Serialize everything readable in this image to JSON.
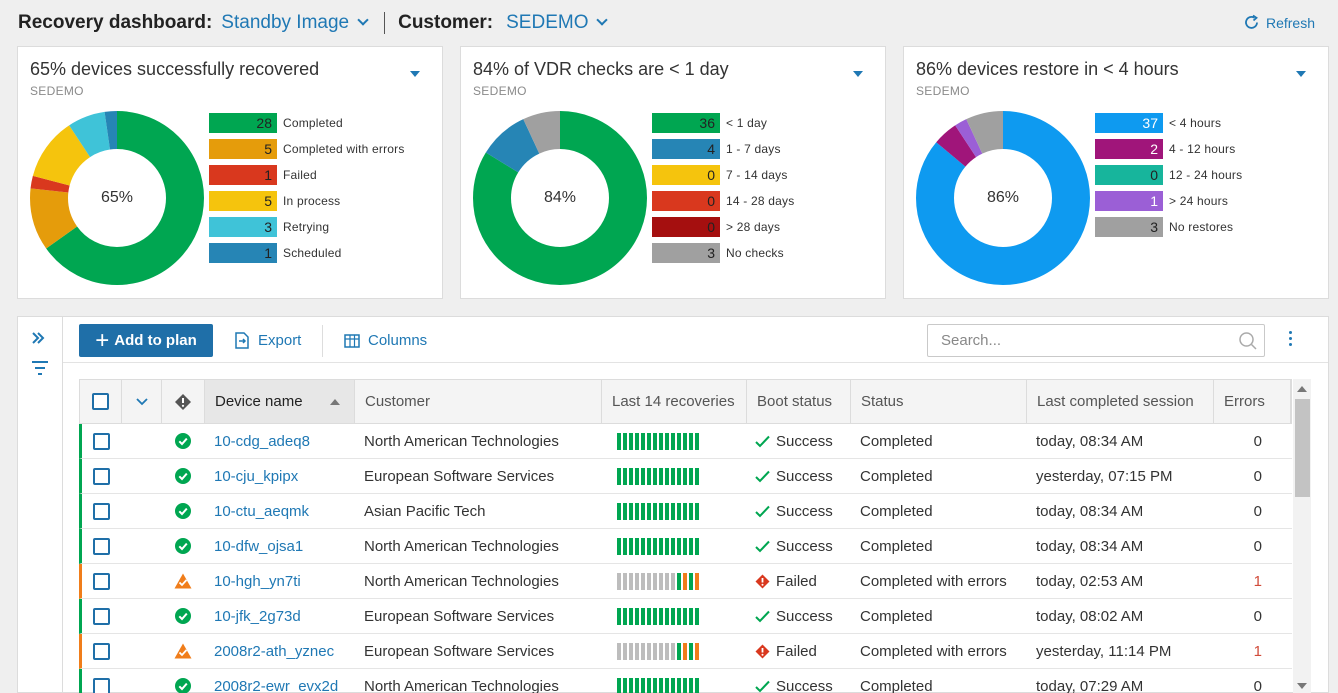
{
  "header": {
    "dashboard_label": "Recovery dashboard:",
    "dashboard_value": "Standby Image",
    "customer_label": "Customer:",
    "customer_value": "SEDEMO",
    "refresh_label": "Refresh"
  },
  "cards": [
    {
      "title": "65% devices successfully recovered",
      "subtitle": "SEDEMO",
      "center": "65%",
      "legend": [
        {
          "value": 28,
          "label": "Completed",
          "color": "#00a651"
        },
        {
          "value": 5,
          "label": "Completed with errors",
          "color": "#e59c0b"
        },
        {
          "value": 1,
          "label": "Failed",
          "color": "#d9381e"
        },
        {
          "value": 5,
          "label": "In process",
          "color": "#f5c40d"
        },
        {
          "value": 3,
          "label": "Retrying",
          "color": "#3fc3d8"
        },
        {
          "value": 1,
          "label": "Scheduled",
          "color": "#2685b5"
        }
      ]
    },
    {
      "title": "84% of VDR checks are < 1 day",
      "subtitle": "SEDEMO",
      "center": "84%",
      "legend": [
        {
          "value": 36,
          "label": "< 1 day",
          "color": "#00a651"
        },
        {
          "value": 4,
          "label": "1 - 7 days",
          "color": "#2685b5"
        },
        {
          "value": 0,
          "label": "7 - 14 days",
          "color": "#f5c40d"
        },
        {
          "value": 0,
          "label": "14 - 28 days",
          "color": "#d9381e"
        },
        {
          "value": 0,
          "label": "> 28 days",
          "color": "#a50f0f"
        },
        {
          "value": 3,
          "label": "No checks",
          "color": "#a0a0a0"
        }
      ]
    },
    {
      "title": "86% devices restore in < 4 hours",
      "subtitle": "SEDEMO",
      "center": "86%",
      "legend": [
        {
          "value": 37,
          "label": "< 4 hours",
          "color": "#0e9af0",
          "text_color": "#ffffff"
        },
        {
          "value": 2,
          "label": "4 - 12 hours",
          "color": "#a0157a",
          "text_color": "#ffffff"
        },
        {
          "value": 0,
          "label": "12 - 24 hours",
          "color": "#17b59c",
          "text_color": "#222222"
        },
        {
          "value": 1,
          "label": "> 24 hours",
          "color": "#9b5fd6",
          "text_color": "#ffffff"
        },
        {
          "value": 3,
          "label": "No restores",
          "color": "#a0a0a0",
          "text_color": "#222222"
        }
      ]
    }
  ],
  "toolbar": {
    "add_label": "Add to plan",
    "export_label": "Export",
    "columns_label": "Columns",
    "search_placeholder": "Search..."
  },
  "table": {
    "headers": {
      "device": "Device name",
      "customer": "Customer",
      "recoveries": "Last 14 recoveries",
      "boot": "Boot status",
      "status": "Status",
      "session": "Last completed session",
      "errors": "Errors"
    },
    "rows": [
      {
        "device": "10-cdg_adeq8",
        "customer": "North American Technologies",
        "boot": "Success",
        "status": "Completed",
        "session": "today, 08:34 AM",
        "errors": "0",
        "state": "ok",
        "recoveries": [
          "g",
          "g",
          "g",
          "g",
          "g",
          "g",
          "g",
          "g",
          "g",
          "g",
          "g",
          "g",
          "g",
          "g"
        ]
      },
      {
        "device": "10-cju_kpipx",
        "customer": "European Software Services",
        "boot": "Success",
        "status": "Completed",
        "session": "yesterday, 07:15 PM",
        "errors": "0",
        "state": "ok",
        "recoveries": [
          "g",
          "g",
          "g",
          "g",
          "g",
          "g",
          "g",
          "g",
          "g",
          "g",
          "g",
          "g",
          "g",
          "g"
        ]
      },
      {
        "device": "10-ctu_aeqmk",
        "customer": "Asian Pacific Tech",
        "boot": "Success",
        "status": "Completed",
        "session": "today, 08:34 AM",
        "errors": "0",
        "state": "ok",
        "recoveries": [
          "g",
          "g",
          "g",
          "g",
          "g",
          "g",
          "g",
          "g",
          "g",
          "g",
          "g",
          "g",
          "g",
          "g"
        ]
      },
      {
        "device": "10-dfw_ojsa1",
        "customer": "North American Technologies",
        "boot": "Success",
        "status": "Completed",
        "session": "today, 08:34 AM",
        "errors": "0",
        "state": "ok",
        "recoveries": [
          "g",
          "g",
          "g",
          "g",
          "g",
          "g",
          "g",
          "g",
          "g",
          "g",
          "g",
          "g",
          "g",
          "g"
        ]
      },
      {
        "device": "10-hgh_yn7ti",
        "customer": "North American Technologies",
        "boot": "Failed",
        "status": "Completed with errors",
        "session": "today, 02:53 AM",
        "errors": "1",
        "state": "warn",
        "recoveries": [
          "x",
          "x",
          "x",
          "x",
          "x",
          "x",
          "x",
          "x",
          "x",
          "x",
          "g",
          "o",
          "g",
          "o"
        ]
      },
      {
        "device": "10-jfk_2g73d",
        "customer": "European Software Services",
        "boot": "Success",
        "status": "Completed",
        "session": "today, 08:02 AM",
        "errors": "0",
        "state": "ok",
        "recoveries": [
          "g",
          "g",
          "g",
          "g",
          "g",
          "g",
          "g",
          "g",
          "g",
          "g",
          "g",
          "g",
          "g",
          "g"
        ]
      },
      {
        "device": "2008r2-ath_yznec",
        "customer": "European Software Services",
        "boot": "Failed",
        "status": "Completed with errors",
        "session": "yesterday, 11:14 PM",
        "errors": "1",
        "state": "warn",
        "recoveries": [
          "x",
          "x",
          "x",
          "x",
          "x",
          "x",
          "x",
          "x",
          "x",
          "x",
          "g",
          "o",
          "g",
          "o"
        ]
      },
      {
        "device": "2008r2-ewr_evx2d",
        "customer": "North American Technologies",
        "boot": "Success",
        "status": "Completed",
        "session": "today, 07:29 AM",
        "errors": "0",
        "state": "ok",
        "recoveries": [
          "g",
          "g",
          "g",
          "g",
          "g",
          "g",
          "g",
          "g",
          "g",
          "g",
          "g",
          "g",
          "g",
          "g"
        ]
      }
    ]
  },
  "colors": {
    "accent": "#1f78b4",
    "success": "#00a651",
    "warning": "#f07d1a",
    "error": "#d9381e",
    "bar_grey": "#bdbdbd"
  }
}
